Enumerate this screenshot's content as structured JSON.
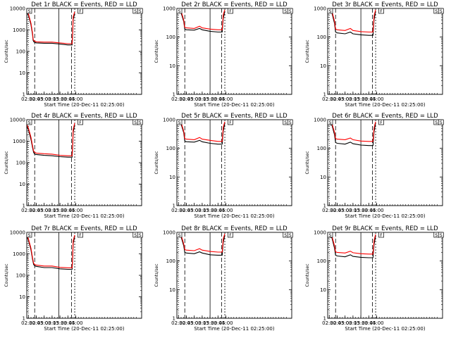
{
  "figure": {
    "xlabel": "Start Time (20-Dec-11 02:25:00)",
    "ylabel": "Counts/sec",
    "legend_note": "BLACK = Events, RED = LLD"
  },
  "chart_data": [
    {
      "type": "line",
      "title": "Det 1r BLACK = Events, RED = LLD",
      "xlabel": "Start Time (20-Dec-11 02:25:00)",
      "ylabel": "Counts/sec",
      "yscale": "log",
      "ylim": [
        1,
        10000
      ],
      "yticks": [
        "1",
        "10",
        "100",
        "1000",
        "10000"
      ],
      "xticks": [
        "02:30",
        "02:45",
        "03:00",
        "03:15",
        "03:30",
        "03:45",
        "04:00"
      ],
      "markers": [
        "S",
        "F",
        "S",
        "S"
      ],
      "x": [
        "02:27",
        "02:30",
        "02:35",
        "02:38",
        "02:39",
        "02:40",
        "02:41",
        "02:45",
        "03:00",
        "03:15",
        "03:30",
        "03:45",
        "03:53",
        "03:54",
        "03:55",
        "03:58"
      ],
      "series": [
        {
          "name": "Events",
          "color": "#000000",
          "values": [
            6500,
            5000,
            1700,
            600,
            330,
            290,
            270,
            250,
            240,
            240,
            220,
            200,
            200,
            600,
            3000,
            6000
          ]
        },
        {
          "name": "LLD",
          "color": "#ff0000",
          "values": [
            7500,
            5800,
            2000,
            700,
            380,
            330,
            310,
            280,
            270,
            270,
            250,
            230,
            230,
            800,
            4000,
            7000
          ]
        }
      ],
      "vlines": [
        "02:30",
        "02:42",
        "03:28",
        "03:52",
        "03:58"
      ]
    },
    {
      "type": "line",
      "title": "Det 2r BLACK = Events, RED = LLD",
      "xlabel": "Start Time (20-Dec-11 02:25:00)",
      "ylabel": "Counts/sec",
      "yscale": "log",
      "ylim": [
        1,
        1000
      ],
      "yticks": [
        "1",
        "10",
        "100",
        "1000"
      ],
      "xticks": [
        "02:30",
        "02:45",
        "03:00",
        "03:15",
        "03:30",
        "03:45",
        "04:00"
      ],
      "markers": [
        "S",
        "F",
        "S",
        "S"
      ],
      "x": [
        "02:27",
        "02:35",
        "02:40",
        "02:42",
        "02:45",
        "03:00",
        "03:10",
        "03:15",
        "03:30",
        "03:45",
        "03:53",
        "03:55",
        "03:58"
      ],
      "series": [
        {
          "name": "Events",
          "color": "#000000",
          "values": [
            700,
            700,
            350,
            190,
            180,
            175,
            200,
            180,
            160,
            150,
            150,
            450,
            800
          ]
        },
        {
          "name": "LLD",
          "color": "#ff0000",
          "values": [
            800,
            800,
            400,
            220,
            210,
            200,
            240,
            210,
            190,
            180,
            180,
            600,
            900
          ]
        }
      ],
      "vlines": [
        "02:30",
        "02:42",
        "03:30",
        "03:52",
        "03:58"
      ]
    },
    {
      "type": "line",
      "title": "Det 3r BLACK = Events, RED = LLD",
      "xlabel": "Start Time (20-Dec-11 02:25:00)",
      "ylabel": "Counts/sec",
      "yscale": "log",
      "ylim": [
        1,
        1000
      ],
      "yticks": [
        "1",
        "10",
        "100",
        "1000"
      ],
      "xticks": [
        "02:30",
        "02:45",
        "03:00",
        "03:15",
        "03:30",
        "03:45",
        "04:00"
      ],
      "markers": [
        "S",
        "F",
        "S",
        "S"
      ],
      "x": [
        "02:27",
        "02:35",
        "02:40",
        "02:42",
        "02:45",
        "03:00",
        "03:10",
        "03:15",
        "03:30",
        "03:45",
        "03:53",
        "03:55",
        "03:58"
      ],
      "series": [
        {
          "name": "Events",
          "color": "#000000",
          "values": [
            750,
            700,
            300,
            150,
            140,
            130,
            150,
            130,
            120,
            115,
            115,
            400,
            800
          ]
        },
        {
          "name": "LLD",
          "color": "#ff0000",
          "values": [
            850,
            800,
            360,
            190,
            180,
            170,
            200,
            170,
            155,
            150,
            150,
            550,
            900
          ]
        }
      ],
      "vlines": [
        "02:30",
        "02:42",
        "03:30",
        "03:52",
        "03:58"
      ]
    },
    {
      "type": "line",
      "title": "Det 4r BLACK = Events, RED = LLD",
      "xlabel": "Start Time (20-Dec-11 02:25:00)",
      "ylabel": "Counts/sec",
      "yscale": "log",
      "ylim": [
        1,
        10000
      ],
      "yticks": [
        "1",
        "10",
        "100",
        "1000",
        "10000"
      ],
      "xticks": [
        "02:30",
        "02:45",
        "03:00",
        "03:15",
        "03:30",
        "03:45",
        "04:00"
      ],
      "markers": [
        "S",
        "F",
        "S",
        "S"
      ],
      "x": [
        "02:27",
        "02:30",
        "02:35",
        "02:38",
        "02:40",
        "02:42",
        "02:45",
        "03:00",
        "03:15",
        "03:30",
        "03:45",
        "03:53",
        "03:54",
        "03:55",
        "03:58"
      ],
      "series": [
        {
          "name": "Events",
          "color": "#000000",
          "values": [
            5000,
            3500,
            1200,
            500,
            300,
            250,
            240,
            220,
            210,
            190,
            180,
            180,
            500,
            2500,
            6000
          ]
        },
        {
          "name": "LLD",
          "color": "#ff0000",
          "values": [
            6000,
            4200,
            1500,
            600,
            350,
            300,
            280,
            260,
            250,
            220,
            210,
            210,
            700,
            3500,
            7000
          ]
        }
      ],
      "vlines": [
        "02:30",
        "02:42",
        "03:28",
        "03:52",
        "03:58"
      ]
    },
    {
      "type": "line",
      "title": "Det 5r BLACK = Events, RED = LLD",
      "xlabel": "Start Time (20-Dec-11 02:25:00)",
      "ylabel": "Counts/sec",
      "yscale": "log",
      "ylim": [
        1,
        1000
      ],
      "yticks": [
        "1",
        "10",
        "100",
        "1000"
      ],
      "xticks": [
        "02:30",
        "02:45",
        "03:00",
        "03:15",
        "03:30",
        "03:45",
        "04:00"
      ],
      "markers": [
        "S",
        "F",
        "S",
        "S"
      ],
      "x": [
        "02:27",
        "02:35",
        "02:40",
        "02:42",
        "02:45",
        "03:00",
        "03:10",
        "03:15",
        "03:30",
        "03:45",
        "03:53",
        "03:55",
        "03:58"
      ],
      "series": [
        {
          "name": "Events",
          "color": "#000000",
          "values": [
            700,
            700,
            350,
            180,
            170,
            165,
            190,
            170,
            150,
            140,
            140,
            400,
            750
          ]
        },
        {
          "name": "LLD",
          "color": "#ff0000",
          "values": [
            800,
            800,
            400,
            220,
            210,
            200,
            240,
            210,
            190,
            175,
            175,
            550,
            850
          ]
        }
      ],
      "vlines": [
        "02:30",
        "02:42",
        "03:30",
        "03:52",
        "03:58"
      ]
    },
    {
      "type": "line",
      "title": "Det 6r BLACK = Events, RED = LLD",
      "xlabel": "Start Time (20-Dec-11 02:25:00)",
      "ylabel": "Counts/sec",
      "yscale": "log",
      "ylim": [
        1,
        1000
      ],
      "yticks": [
        "1",
        "10",
        "100",
        "1000"
      ],
      "xticks": [
        "02:30",
        "02:45",
        "03:00",
        "03:15",
        "03:30",
        "03:45",
        "04:00"
      ],
      "markers": [
        "S",
        "F",
        "S",
        "S"
      ],
      "x": [
        "02:27",
        "02:35",
        "02:40",
        "02:42",
        "02:45",
        "03:00",
        "03:10",
        "03:15",
        "03:30",
        "03:45",
        "03:53",
        "03:55",
        "03:58"
      ],
      "series": [
        {
          "name": "Events",
          "color": "#000000",
          "values": [
            700,
            650,
            300,
            160,
            150,
            140,
            165,
            145,
            130,
            125,
            125,
            380,
            750
          ]
        },
        {
          "name": "LLD",
          "color": "#ff0000",
          "values": [
            800,
            750,
            360,
            220,
            210,
            200,
            230,
            200,
            180,
            175,
            175,
            520,
            850
          ]
        }
      ],
      "vlines": [
        "02:30",
        "02:42",
        "03:30",
        "03:52",
        "03:58"
      ]
    },
    {
      "type": "line",
      "title": "Det 7r BLACK = Events, RED = LLD",
      "xlabel": "Start Time (20-Dec-11 02:25:00)",
      "ylabel": "Counts/sec",
      "yscale": "log",
      "ylim": [
        1,
        10000
      ],
      "yticks": [
        "1",
        "10",
        "100",
        "1000",
        "10000"
      ],
      "xticks": [
        "02:30",
        "02:45",
        "03:00",
        "03:15",
        "03:30",
        "03:45",
        "04:00"
      ],
      "markers": [
        "S",
        "F",
        "S",
        "S"
      ],
      "x": [
        "02:27",
        "02:30",
        "02:35",
        "02:38",
        "02:40",
        "02:42",
        "02:45",
        "03:00",
        "03:15",
        "03:30",
        "03:45",
        "03:53",
        "03:54",
        "03:55",
        "03:58"
      ],
      "series": [
        {
          "name": "Events",
          "color": "#000000",
          "values": [
            6500,
            4500,
            1500,
            550,
            320,
            280,
            260,
            230,
            230,
            200,
            190,
            190,
            550,
            3000,
            6500
          ]
        },
        {
          "name": "LLD",
          "color": "#ff0000",
          "values": [
            7500,
            5200,
            1800,
            650,
            370,
            320,
            300,
            270,
            270,
            235,
            225,
            225,
            750,
            4000,
            7500
          ]
        }
      ],
      "vlines": [
        "02:30",
        "02:42",
        "03:28",
        "03:52",
        "03:58"
      ]
    },
    {
      "type": "line",
      "title": "Det 8r BLACK = Events, RED = LLD",
      "xlabel": "Start Time (20-Dec-11 02:25:00)",
      "ylabel": "Counts/sec",
      "yscale": "log",
      "ylim": [
        1,
        1000
      ],
      "yticks": [
        "1",
        "10",
        "100",
        "1000"
      ],
      "xticks": [
        "02:30",
        "02:45",
        "03:00",
        "03:15",
        "03:30",
        "03:45",
        "04:00"
      ],
      "markers": [
        "S",
        "F",
        "S",
        "S"
      ],
      "x": [
        "02:27",
        "02:35",
        "02:40",
        "02:42",
        "02:45",
        "03:00",
        "03:10",
        "03:15",
        "03:30",
        "03:45",
        "03:53",
        "03:55",
        "03:58"
      ],
      "series": [
        {
          "name": "Events",
          "color": "#000000",
          "values": [
            700,
            700,
            340,
            200,
            190,
            180,
            210,
            190,
            165,
            160,
            160,
            450,
            800
          ]
        },
        {
          "name": "LLD",
          "color": "#ff0000",
          "values": [
            800,
            800,
            400,
            250,
            240,
            230,
            270,
            240,
            215,
            205,
            205,
            600,
            900
          ]
        }
      ],
      "vlines": [
        "02:30",
        "02:42",
        "03:30",
        "03:52",
        "03:58"
      ]
    },
    {
      "type": "line",
      "title": "Det 9r BLACK = Events, RED = LLD",
      "xlabel": "Start Time (20-Dec-11 02:25:00)",
      "ylabel": "Counts/sec",
      "yscale": "log",
      "ylim": [
        1,
        1000
      ],
      "yticks": [
        "1",
        "10",
        "100",
        "1000"
      ],
      "xticks": [
        "02:30",
        "02:45",
        "03:00",
        "03:15",
        "03:30",
        "03:45",
        "04:00"
      ],
      "markers": [
        "S",
        "F",
        "S",
        "S"
      ],
      "x": [
        "02:27",
        "02:35",
        "02:40",
        "02:42",
        "02:45",
        "03:00",
        "03:10",
        "03:15",
        "03:30",
        "03:45",
        "03:53",
        "03:55",
        "03:58"
      ],
      "series": [
        {
          "name": "Events",
          "color": "#000000",
          "values": [
            700,
            650,
            280,
            160,
            150,
            140,
            165,
            145,
            135,
            130,
            130,
            380,
            750
          ]
        },
        {
          "name": "LLD",
          "color": "#ff0000",
          "values": [
            800,
            750,
            340,
            210,
            200,
            190,
            220,
            195,
            180,
            175,
            175,
            520,
            850
          ]
        }
      ],
      "vlines": [
        "02:30",
        "02:42",
        "03:30",
        "03:52",
        "03:58"
      ]
    }
  ]
}
